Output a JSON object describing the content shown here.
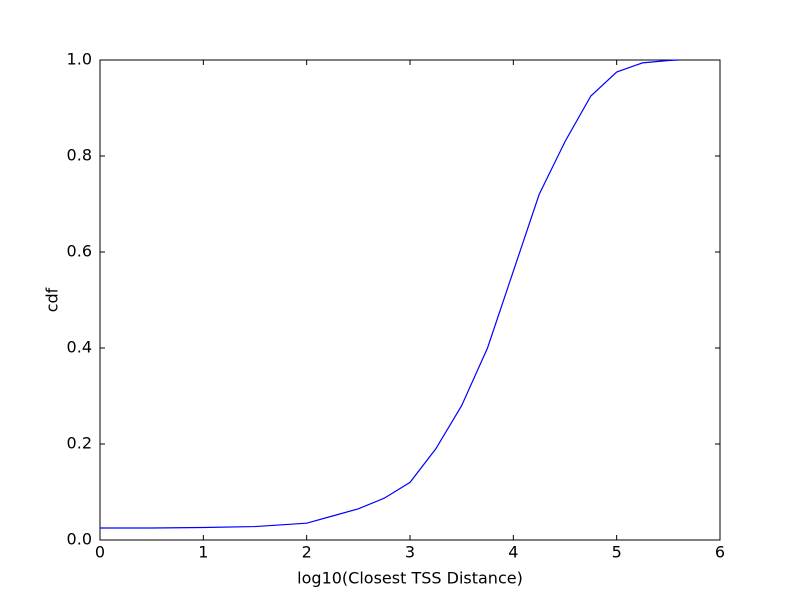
{
  "chart_data": {
    "type": "line",
    "x_label": "log10(Closest TSS Distance)",
    "y_label": "cdf",
    "series": [
      {
        "color": "#0000ff",
        "x": [
          0,
          0.5,
          1.0,
          1.5,
          2.0,
          2.25,
          2.5,
          2.75,
          3.0,
          3.25,
          3.5,
          3.75,
          4.0,
          4.25,
          4.5,
          4.75,
          5.0,
          5.25,
          5.5,
          5.6
        ],
        "values": [
          0.025,
          0.025,
          0.026,
          0.028,
          0.035,
          0.05,
          0.065,
          0.087,
          0.12,
          0.19,
          0.28,
          0.4,
          0.56,
          0.72,
          0.83,
          0.925,
          0.975,
          0.994,
          0.999,
          1.0
        ]
      }
    ],
    "xlim": [
      0,
      6
    ],
    "xticks": [
      0,
      1,
      2,
      3,
      4,
      5,
      6
    ],
    "ylim": [
      0,
      1
    ],
    "yticks": [
      {
        "value": 0,
        "label": "0.0"
      },
      0.2,
      0.4,
      0.6,
      0.8,
      {
        "value": 1,
        "label": "1.0"
      }
    ],
    "grid": false
  }
}
